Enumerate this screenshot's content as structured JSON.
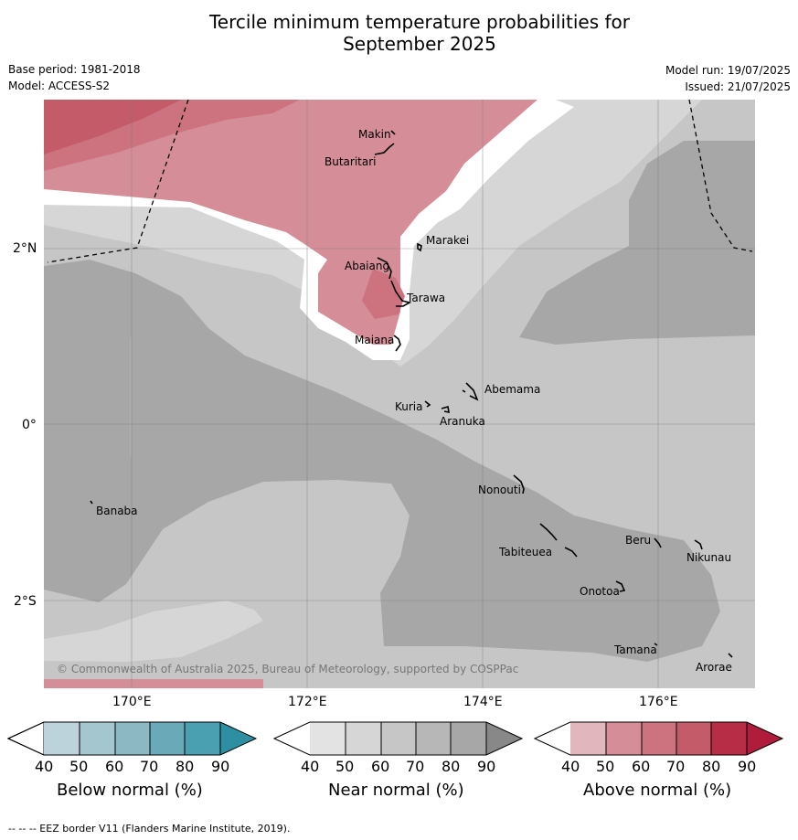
{
  "title_line1": "Tercile minimum temperature probabilities for",
  "title_line2": "September 2025",
  "base_period": "Base period: 1981-2018",
  "model": "Model: ACCESS-S2",
  "model_run": "Model run: 19/07/2025",
  "issued": "Issued: 21/07/2025",
  "lat_labels": [
    "2°N",
    "0°",
    "2°S"
  ],
  "lon_labels": [
    "170°E",
    "172°E",
    "174°E",
    "176°E"
  ],
  "copyright": "© Commonwealth of Australia 2025, Bureau of Meteorology, supported by COSPPac",
  "footnote": "--  --  -- EEZ border V11 (Flanders Marine Institute, 2019).",
  "places": [
    "Makin",
    "Butaritari",
    "Marakei",
    "Abaiang",
    "Tarawa",
    "Maiana",
    "Abemama",
    "Kuria",
    "Aranuka",
    "Nonouti",
    "Banaba",
    "Tabiteuea",
    "Beru",
    "Nikunau",
    "Onotoa",
    "Tamana",
    "Arorae"
  ],
  "colorbars": [
    {
      "title": "Below normal (%)",
      "ticks": [
        "40",
        "50",
        "60",
        "70",
        "80",
        "90"
      ],
      "colors": [
        "#bcd3db",
        "#a4c6ce",
        "#8cb8c3",
        "#6aa9b8",
        "#4aa0b1",
        "#2e8fa3"
      ]
    },
    {
      "title": "Near normal (%)",
      "ticks": [
        "40",
        "50",
        "60",
        "70",
        "80",
        "90"
      ],
      "colors": [
        "#e3e3e3",
        "#d6d6d6",
        "#c6c6c6",
        "#b7b7b7",
        "#a7a7a7",
        "#888888"
      ]
    },
    {
      "title": "Above normal (%)",
      "ticks": [
        "40",
        "50",
        "60",
        "70",
        "80",
        "90"
      ],
      "colors": [
        "#e1b6bd",
        "#d58e98",
        "#cc737f",
        "#c35b69",
        "#b72d45",
        "#b01c3c"
      ]
    }
  ]
}
